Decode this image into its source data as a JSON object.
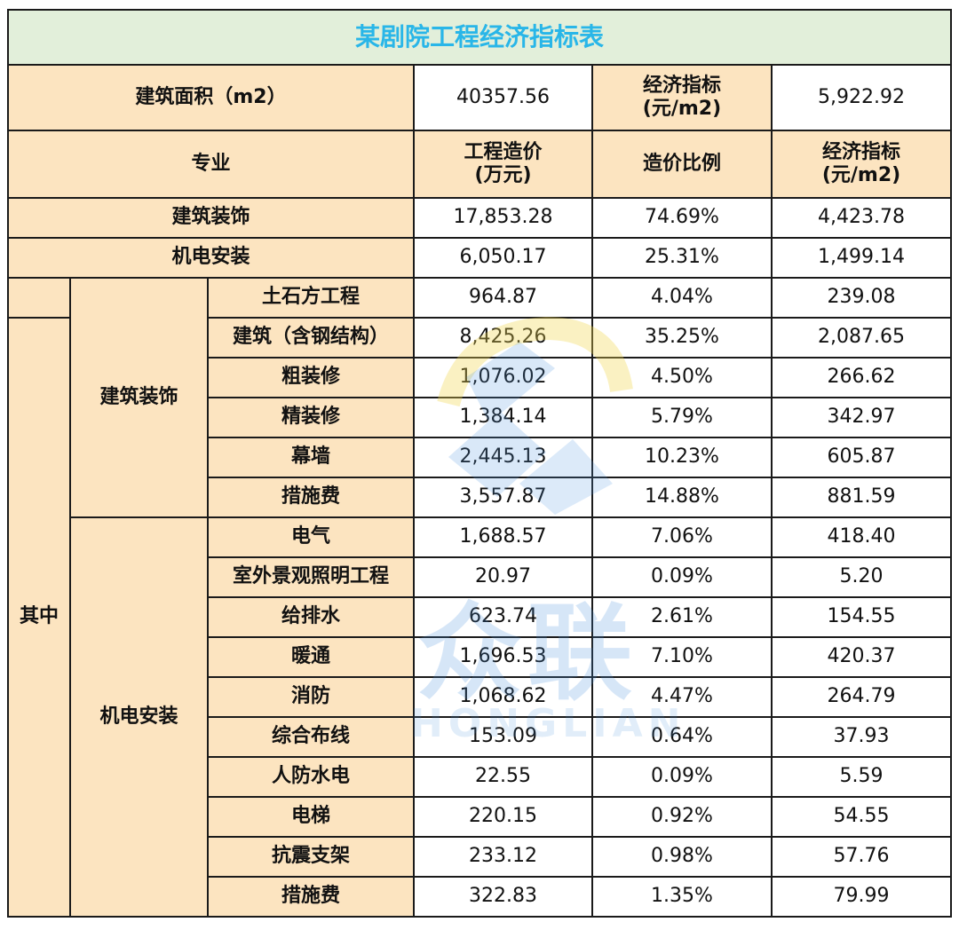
{
  "title": "某剧院工程经济指标表",
  "area": {
    "label": "建筑面积（m2）",
    "value": "40357.56",
    "index_label": "经济指标\n(元/m2)",
    "index_value": "5,922.92"
  },
  "headers": {
    "major": "专业",
    "cost": "工程造价\n(万元)",
    "ratio": "造价比例",
    "index": "经济指标\n(元/m2)"
  },
  "summary": [
    {
      "name": "建筑装饰",
      "cost": "17,853.28",
      "ratio": "74.69%",
      "index": "4,423.78"
    },
    {
      "name": "机电安装",
      "cost": "6,050.17",
      "ratio": "25.31%",
      "index": "1,499.14"
    }
  ],
  "group_label": "其中",
  "sub_groups": {
    "arch": "建筑装饰",
    "mep": "机电安装"
  },
  "items": [
    {
      "name": "土石方工程",
      "cost": "964.87",
      "ratio": "4.04%",
      "index": "239.08"
    },
    {
      "name": "建筑（含钢结构）",
      "cost": "8,425.26",
      "ratio": "35.25%",
      "index": "2,087.65"
    },
    {
      "name": "粗装修",
      "cost": "1,076.02",
      "ratio": "4.50%",
      "index": "266.62"
    },
    {
      "name": "精装修",
      "cost": "1,384.14",
      "ratio": "5.79%",
      "index": "342.97"
    },
    {
      "name": "幕墙",
      "cost": "2,445.13",
      "ratio": "10.23%",
      "index": "605.87"
    },
    {
      "name": "措施费",
      "cost": "3,557.87",
      "ratio": "14.88%",
      "index": "881.59"
    },
    {
      "name": "电气",
      "cost": "1,688.57",
      "ratio": "7.06%",
      "index": "418.40"
    },
    {
      "name": "室外景观照明工程",
      "cost": "20.97",
      "ratio": "0.09%",
      "index": "5.20"
    },
    {
      "name": "给排水",
      "cost": "623.74",
      "ratio": "2.61%",
      "index": "154.55"
    },
    {
      "name": "暖通",
      "cost": "1,696.53",
      "ratio": "7.10%",
      "index": "420.37"
    },
    {
      "name": "消防",
      "cost": "1,068.62",
      "ratio": "4.47%",
      "index": "264.79"
    },
    {
      "name": "综合布线",
      "cost": "153.09",
      "ratio": "0.64%",
      "index": "37.93"
    },
    {
      "name": "人防水电",
      "cost": "22.55",
      "ratio": "0.09%",
      "index": "5.59"
    },
    {
      "name": "电梯",
      "cost": "220.15",
      "ratio": "0.92%",
      "index": "54.55"
    },
    {
      "name": "抗震支架",
      "cost": "233.12",
      "ratio": "0.98%",
      "index": "57.76"
    },
    {
      "name": "措施费",
      "cost": "322.83",
      "ratio": "1.35%",
      "index": "79.99"
    }
  ],
  "watermark": {
    "cn": "众联",
    "en": "HONGLIAN"
  },
  "colors": {
    "title_bg": "#e2efda",
    "title_text": "#29b6e8",
    "header_bg": "#fce4c0"
  }
}
